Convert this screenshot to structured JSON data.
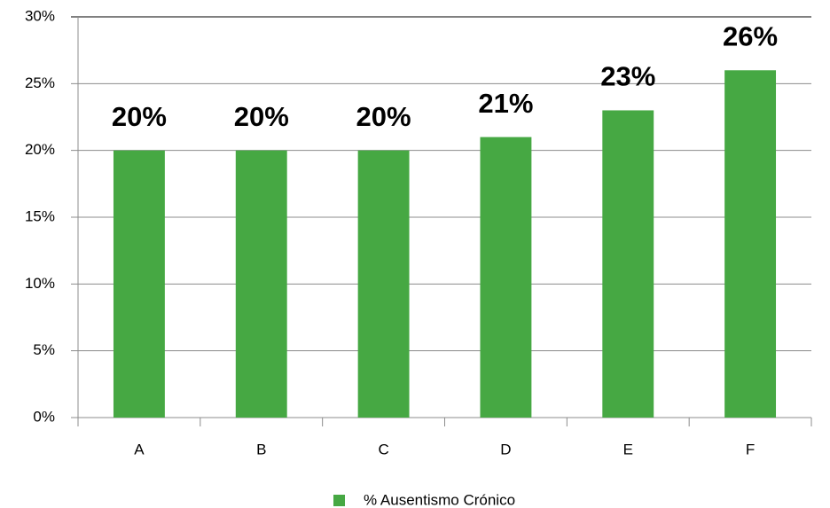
{
  "chart_data": {
    "type": "bar",
    "categories": [
      "A",
      "B",
      "C",
      "D",
      "E",
      "F"
    ],
    "series": [
      {
        "name": "% Ausentismo Crónico",
        "color": "#46a843",
        "values": [
          20,
          20,
          20,
          21,
          23,
          26
        ],
        "value_labels": [
          "20%",
          "20%",
          "20%",
          "21%",
          "23%",
          "26%"
        ]
      }
    ],
    "ylim": [
      0,
      30
    ],
    "yticks": [
      {
        "value": 0,
        "label": "0%"
      },
      {
        "value": 5,
        "label": "5%"
      },
      {
        "value": 10,
        "label": "10%"
      },
      {
        "value": 15,
        "label": "15%"
      },
      {
        "value": 20,
        "label": "20%"
      },
      {
        "value": 25,
        "label": "25%"
      },
      {
        "value": 30,
        "label": "30%"
      }
    ],
    "grid": true,
    "legend": "bottom"
  }
}
